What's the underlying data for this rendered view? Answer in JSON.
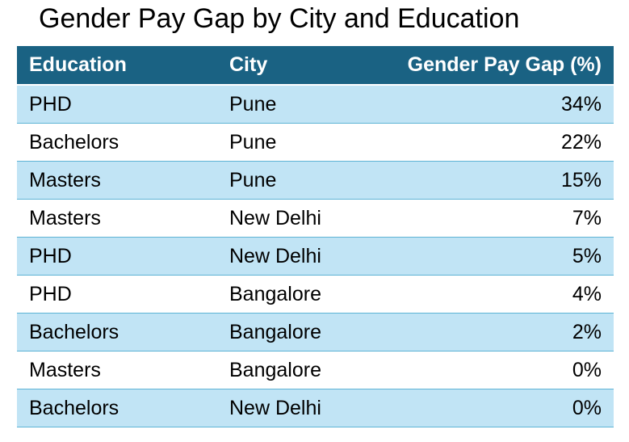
{
  "chart_data": {
    "type": "table",
    "title": "Gender Pay Gap by City and Education",
    "columns": [
      "Education",
      "City",
      "Gender Pay Gap (%)"
    ],
    "rows": [
      [
        "PHD",
        "Pune",
        "34%"
      ],
      [
        "Bachelors",
        "Pune",
        "22%"
      ],
      [
        "Masters",
        "Pune",
        "15%"
      ],
      [
        "Masters",
        "New Delhi",
        "7%"
      ],
      [
        "PHD",
        "New Delhi",
        "5%"
      ],
      [
        "PHD",
        "Bangalore",
        "4%"
      ],
      [
        "Bachelors",
        "Bangalore",
        "2%"
      ],
      [
        "Masters",
        "Bangalore",
        "0%"
      ],
      [
        "Bachelors",
        "New Delhi",
        "0%"
      ]
    ],
    "values": [
      34,
      22,
      15,
      7,
      5,
      4,
      2,
      0,
      0
    ],
    "colors": {
      "header_background": "#1a6283",
      "header_text": "#ffffff",
      "band_row": "#c1e4f5",
      "plain_row": "#ffffff",
      "row_border": "#5db3d5"
    }
  }
}
